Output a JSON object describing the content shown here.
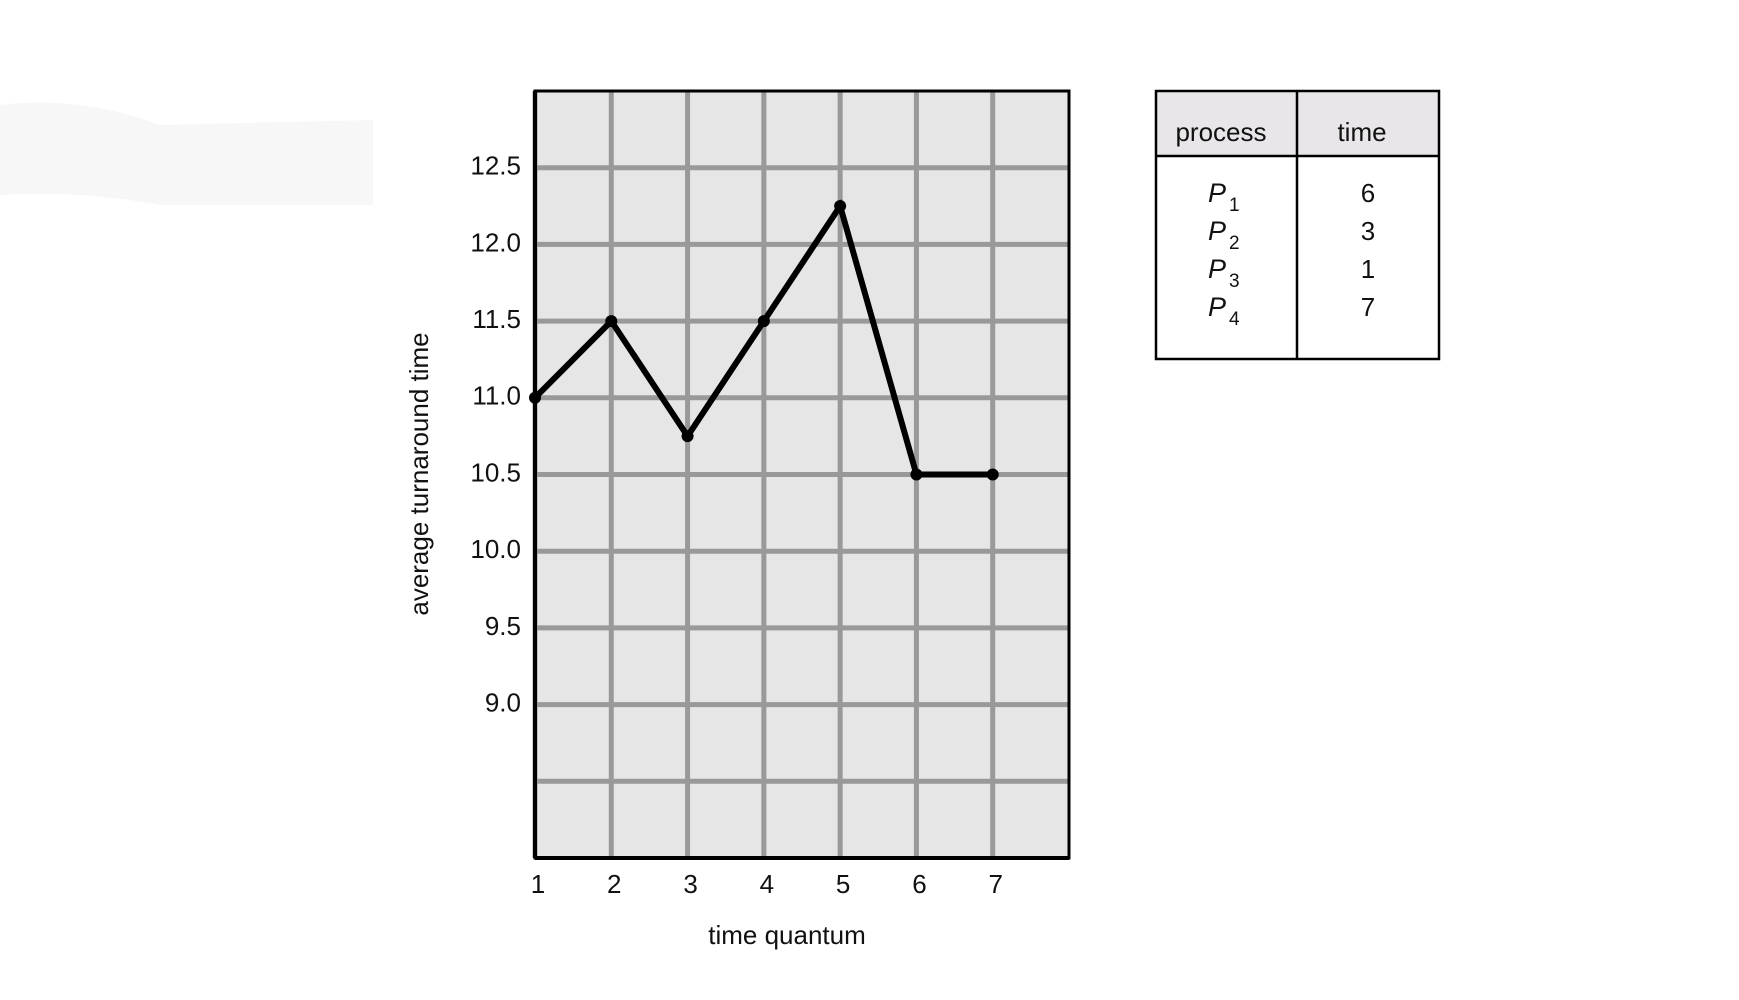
{
  "chart_data": {
    "type": "line",
    "x_label": "time quantum",
    "y_label": "average turnaround time",
    "x": [
      1,
      2,
      3,
      4,
      5,
      6,
      7
    ],
    "series": [
      {
        "name": "average turnaround time",
        "color": "#000000",
        "values": [
          11.0,
          11.5,
          10.75,
          11.5,
          12.25,
          10.5,
          10.5
        ]
      }
    ],
    "xlim": [
      1,
      8
    ],
    "xticks": [
      1,
      2,
      3,
      4,
      5,
      6,
      7
    ],
    "ylim": [
      8,
      13
    ],
    "yticks": [
      {
        "value": 9,
        "label": "9.0"
      },
      9.5,
      {
        "value": 10,
        "label": "10.0"
      },
      10.5,
      {
        "value": 11,
        "label": "11.0"
      },
      11.5,
      {
        "value": 12,
        "label": "12.0"
      },
      12.5
    ],
    "yticks_unlabeled": [
      8.5
    ],
    "grid": true
  },
  "table": {
    "header": [
      "process",
      "time"
    ],
    "rows": [
      {
        "name": "P",
        "index": "1",
        "time": 6
      },
      {
        "name": "P",
        "index": "2",
        "time": 3
      },
      {
        "name": "P",
        "index": "3",
        "time": 1
      },
      {
        "name": "P",
        "index": "4",
        "time": 7
      }
    ]
  }
}
